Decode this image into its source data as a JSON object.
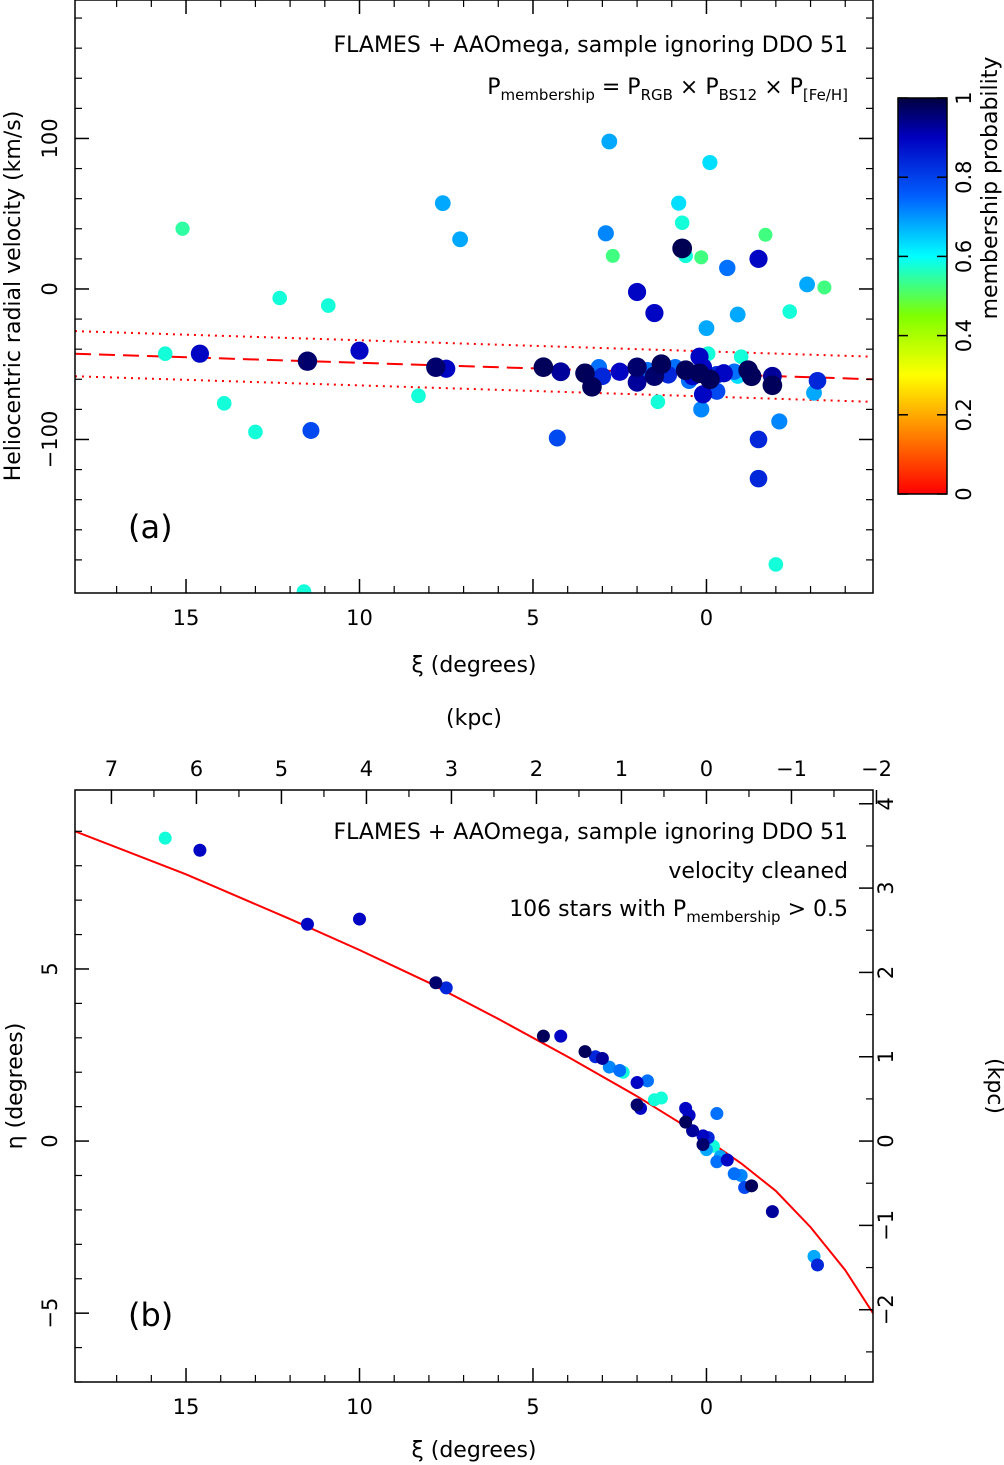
{
  "chart_data": [
    {
      "panel": "a",
      "type": "scatter",
      "panel_label": "(a)",
      "annotation_line1": "FLAMES + AAOmega, sample ignoring DDO 51",
      "annotation_line2": {
        "p": "P",
        "sub_membership": "membership",
        "eq": " = P",
        "sub_rgb": "RGB",
        "x1": " × P",
        "sub_bs12": "BS12",
        "x2": " × P",
        "sub_feh": "[Fe/H]"
      },
      "xlabel": "ξ (degrees)",
      "ylabel": "Heliocentric radial velocity (km/s)",
      "xlim": [
        18.2,
        -4.8
      ],
      "ylim": [
        -202,
        192
      ],
      "xticks": [
        15,
        10,
        5,
        0
      ],
      "xtick_labels": [
        "15",
        "10",
        "5",
        "0"
      ],
      "yticks": [
        100,
        0,
        -100
      ],
      "ytick_labels": [
        "100",
        "0",
        "−100"
      ],
      "colorbar": {
        "label": "membership probability",
        "ticks": [
          0,
          0.2,
          0.4,
          0.6,
          0.8,
          1
        ],
        "tick_labels": [
          "0",
          "0.2",
          "0.4",
          "0.6",
          "0.8",
          "1"
        ],
        "colormap": [
          "#ff0000",
          "#ff8000",
          "#ffff00",
          "#80ff00",
          "#00ffff",
          "#0060ff",
          "#0000c0",
          "#000040"
        ]
      },
      "trend_line": {
        "x": [
          18.2,
          -4.8
        ],
        "y": [
          -43,
          -60
        ]
      },
      "band_upper": {
        "x": [
          18.2,
          -4.8
        ],
        "y": [
          -28,
          -45
        ]
      },
      "band_lower": {
        "x": [
          18.2,
          -4.8
        ],
        "y": [
          -58,
          -75
        ]
      },
      "points": [
        {
          "x": 15.1,
          "y": 40,
          "p": 0.52
        },
        {
          "x": 15.6,
          "y": -43,
          "p": 0.55
        },
        {
          "x": 14.6,
          "y": -43,
          "p": 0.85
        },
        {
          "x": 13.9,
          "y": -76,
          "p": 0.55
        },
        {
          "x": 13.0,
          "y": -95,
          "p": 0.55
        },
        {
          "x": 12.3,
          "y": -6,
          "p": 0.55
        },
        {
          "x": 11.6,
          "y": -201,
          "p": 0.55
        },
        {
          "x": 11.5,
          "y": -48,
          "p": 0.95
        },
        {
          "x": 11.4,
          "y": -94,
          "p": 0.75
        },
        {
          "x": 10.9,
          "y": -11,
          "p": 0.55
        },
        {
          "x": 10.0,
          "y": -41,
          "p": 0.85
        },
        {
          "x": 8.3,
          "y": -71,
          "p": 0.55
        },
        {
          "x": 7.8,
          "y": -52,
          "p": 0.95
        },
        {
          "x": 7.6,
          "y": 57,
          "p": 0.65
        },
        {
          "x": 7.5,
          "y": -53,
          "p": 0.85
        },
        {
          "x": 7.1,
          "y": 33,
          "p": 0.65
        },
        {
          "x": 4.7,
          "y": -52,
          "p": 0.97
        },
        {
          "x": 4.3,
          "y": -99,
          "p": 0.75
        },
        {
          "x": 4.2,
          "y": -55,
          "p": 0.9
        },
        {
          "x": 3.5,
          "y": -56,
          "p": 0.97
        },
        {
          "x": 3.3,
          "y": -65,
          "p": 0.97
        },
        {
          "x": 3.1,
          "y": -52,
          "p": 0.7
        },
        {
          "x": 3.0,
          "y": -58,
          "p": 0.8
        },
        {
          "x": 2.9,
          "y": 37,
          "p": 0.68
        },
        {
          "x": 2.8,
          "y": 98,
          "p": 0.65
        },
        {
          "x": 2.7,
          "y": 22,
          "p": 0.5
        },
        {
          "x": 2.5,
          "y": -55,
          "p": 0.85
        },
        {
          "x": 2.0,
          "y": -2,
          "p": 0.85
        },
        {
          "x": 2.0,
          "y": -52,
          "p": 0.95
        },
        {
          "x": 2.0,
          "y": -62,
          "p": 0.9
        },
        {
          "x": 1.7,
          "y": -54,
          "p": 0.7
        },
        {
          "x": 1.5,
          "y": -16,
          "p": 0.85
        },
        {
          "x": 1.5,
          "y": -58,
          "p": 0.95
        },
        {
          "x": 1.4,
          "y": -75,
          "p": 0.55
        },
        {
          "x": 1.3,
          "y": -50,
          "p": 0.97
        },
        {
          "x": 1.1,
          "y": -57,
          "p": 0.8
        },
        {
          "x": 0.9,
          "y": -52,
          "p": 0.7
        },
        {
          "x": 0.8,
          "y": 57,
          "p": 0.6
        },
        {
          "x": 0.7,
          "y": 44,
          "p": 0.55
        },
        {
          "x": 0.7,
          "y": 27,
          "p": 0.98
        },
        {
          "x": 0.6,
          "y": 22,
          "p": 0.55
        },
        {
          "x": 0.6,
          "y": -54,
          "p": 0.97
        },
        {
          "x": 0.5,
          "y": -61,
          "p": 0.7
        },
        {
          "x": 0.4,
          "y": -58,
          "p": 0.85
        },
        {
          "x": 0.2,
          "y": -56,
          "p": 0.97
        },
        {
          "x": 0.2,
          "y": -45,
          "p": 0.85
        },
        {
          "x": 0.15,
          "y": -80,
          "p": 0.68
        },
        {
          "x": 0.15,
          "y": 21,
          "p": 0.5
        },
        {
          "x": 0.1,
          "y": -70,
          "p": 0.85
        },
        {
          "x": 0.1,
          "y": -52,
          "p": 0.85
        },
        {
          "x": 0.0,
          "y": -26,
          "p": 0.65
        },
        {
          "x": -0.1,
          "y": 84,
          "p": 0.6
        },
        {
          "x": -0.05,
          "y": -43,
          "p": 0.55
        },
        {
          "x": -0.1,
          "y": -60,
          "p": 0.97
        },
        {
          "x": -0.3,
          "y": -68,
          "p": 0.75
        },
        {
          "x": -0.3,
          "y": -57,
          "p": 0.8
        },
        {
          "x": -0.5,
          "y": -56,
          "p": 0.85
        },
        {
          "x": -0.6,
          "y": 14,
          "p": 0.7
        },
        {
          "x": -0.8,
          "y": -55,
          "p": 0.7
        },
        {
          "x": -0.9,
          "y": -58,
          "p": 0.6
        },
        {
          "x": -0.9,
          "y": -17,
          "p": 0.65
        },
        {
          "x": -1.0,
          "y": -45,
          "p": 0.55
        },
        {
          "x": -1.2,
          "y": -54,
          "p": 0.97
        },
        {
          "x": -1.3,
          "y": -58,
          "p": 0.97
        },
        {
          "x": -1.5,
          "y": -100,
          "p": 0.8
        },
        {
          "x": -1.5,
          "y": -126,
          "p": 0.8
        },
        {
          "x": -1.5,
          "y": 20,
          "p": 0.85
        },
        {
          "x": -1.7,
          "y": 36,
          "p": 0.5
        },
        {
          "x": -1.9,
          "y": -58,
          "p": 0.9
        },
        {
          "x": -1.9,
          "y": -64,
          "p": 0.97
        },
        {
          "x": -2.0,
          "y": -183,
          "p": 0.55
        },
        {
          "x": -2.1,
          "y": -88,
          "p": 0.68
        },
        {
          "x": -2.4,
          "y": -15,
          "p": 0.55
        },
        {
          "x": -2.9,
          "y": 3,
          "p": 0.65
        },
        {
          "x": -3.1,
          "y": -69,
          "p": 0.65
        },
        {
          "x": -3.2,
          "y": -61,
          "p": 0.8
        },
        {
          "x": -3.4,
          "y": 1,
          "p": 0.5
        }
      ]
    },
    {
      "panel": "b",
      "type": "scatter",
      "panel_label": "(b)",
      "annotation_line1": "FLAMES + AAOmega, sample ignoring DDO 51",
      "annotation_line2": "velocity cleaned",
      "annotation_line3": {
        "pre": "106 stars with P",
        "sub": "membership",
        "post": " > 0.5"
      },
      "xlabel": "ξ (degrees)",
      "ylabel": "η (degrees)",
      "top_label": "(kpc)",
      "right_label": "(kpc)",
      "xlim": [
        18.2,
        -4.8
      ],
      "ylim": [
        -7,
        10.2
      ],
      "xticks": [
        15,
        10,
        5,
        0
      ],
      "xtick_labels": [
        "15",
        "10",
        "5",
        "0"
      ],
      "yticks": [
        5,
        0,
        -5
      ],
      "ytick_labels": [
        "5",
        "0",
        "−5"
      ],
      "top_xticks_kpc": [
        7,
        6,
        5,
        4,
        3,
        2,
        1,
        0,
        -1,
        -2
      ],
      "top_xtick_labels": [
        "7",
        "6",
        "5",
        "4",
        "3",
        "2",
        "1",
        "0",
        "−1",
        "−2"
      ],
      "right_yticks_kpc": [
        4,
        3,
        2,
        1,
        0,
        -1,
        -2
      ],
      "right_ytick_labels": [
        "4",
        "3",
        "2",
        "1",
        "0",
        "−1",
        "−2"
      ],
      "degrees_per_kpc": 2.45,
      "orbit_curve": {
        "x": [
          18.2,
          15,
          12,
          10,
          8,
          6,
          4,
          2,
          0,
          -1,
          -2,
          -3,
          -4,
          -4.8
        ],
        "y": [
          9.0,
          7.75,
          6.45,
          5.55,
          4.6,
          3.55,
          2.45,
          1.3,
          0.05,
          -0.65,
          -1.45,
          -2.5,
          -3.75,
          -5.0
        ]
      },
      "points": [
        {
          "x": 15.6,
          "y": 8.8,
          "p": 0.55
        },
        {
          "x": 14.6,
          "y": 8.45,
          "p": 0.85
        },
        {
          "x": 11.5,
          "y": 6.3,
          "p": 0.85
        },
        {
          "x": 10.0,
          "y": 6.45,
          "p": 0.85
        },
        {
          "x": 7.8,
          "y": 4.6,
          "p": 0.95
        },
        {
          "x": 7.5,
          "y": 4.45,
          "p": 0.8
        },
        {
          "x": 4.7,
          "y": 3.05,
          "p": 0.97
        },
        {
          "x": 4.2,
          "y": 3.05,
          "p": 0.85
        },
        {
          "x": 3.5,
          "y": 2.6,
          "p": 0.97
        },
        {
          "x": 3.2,
          "y": 2.45,
          "p": 0.8
        },
        {
          "x": 3.0,
          "y": 2.4,
          "p": 0.9
        },
        {
          "x": 2.8,
          "y": 2.15,
          "p": 0.68
        },
        {
          "x": 2.5,
          "y": 2.05,
          "p": 0.7
        },
        {
          "x": 2.4,
          "y": 2.0,
          "p": 0.55
        },
        {
          "x": 2.0,
          "y": 1.7,
          "p": 0.85
        },
        {
          "x": 1.7,
          "y": 1.75,
          "p": 0.7
        },
        {
          "x": 2.0,
          "y": 1.05,
          "p": 0.95
        },
        {
          "x": 1.9,
          "y": 0.95,
          "p": 0.85
        },
        {
          "x": 1.5,
          "y": 1.2,
          "p": 0.55
        },
        {
          "x": 1.3,
          "y": 1.25,
          "p": 0.55
        },
        {
          "x": 0.6,
          "y": 0.95,
          "p": 0.85
        },
        {
          "x": 0.5,
          "y": 0.75,
          "p": 0.85
        },
        {
          "x": 0.6,
          "y": 0.55,
          "p": 0.97
        },
        {
          "x": -0.3,
          "y": 0.8,
          "p": 0.7
        },
        {
          "x": 0.4,
          "y": 0.3,
          "p": 0.9
        },
        {
          "x": 0.1,
          "y": 0.15,
          "p": 0.85
        },
        {
          "x": -0.05,
          "y": 0.1,
          "p": 0.8
        },
        {
          "x": 0.1,
          "y": -0.1,
          "p": 0.95
        },
        {
          "x": 0.0,
          "y": -0.25,
          "p": 0.65
        },
        {
          "x": -0.2,
          "y": -0.15,
          "p": 0.55
        },
        {
          "x": -0.3,
          "y": -0.6,
          "p": 0.7
        },
        {
          "x": -0.4,
          "y": -0.45,
          "p": 0.65
        },
        {
          "x": -0.6,
          "y": -0.55,
          "p": 0.85
        },
        {
          "x": -0.8,
          "y": -0.95,
          "p": 0.7
        },
        {
          "x": -1.0,
          "y": -1.0,
          "p": 0.68
        },
        {
          "x": -1.1,
          "y": -1.35,
          "p": 0.75
        },
        {
          "x": -1.3,
          "y": -1.3,
          "p": 0.97
        },
        {
          "x": -1.9,
          "y": -2.05,
          "p": 0.9
        },
        {
          "x": -3.1,
          "y": -3.35,
          "p": 0.65
        },
        {
          "x": -3.2,
          "y": -3.6,
          "p": 0.8
        }
      ]
    }
  ]
}
